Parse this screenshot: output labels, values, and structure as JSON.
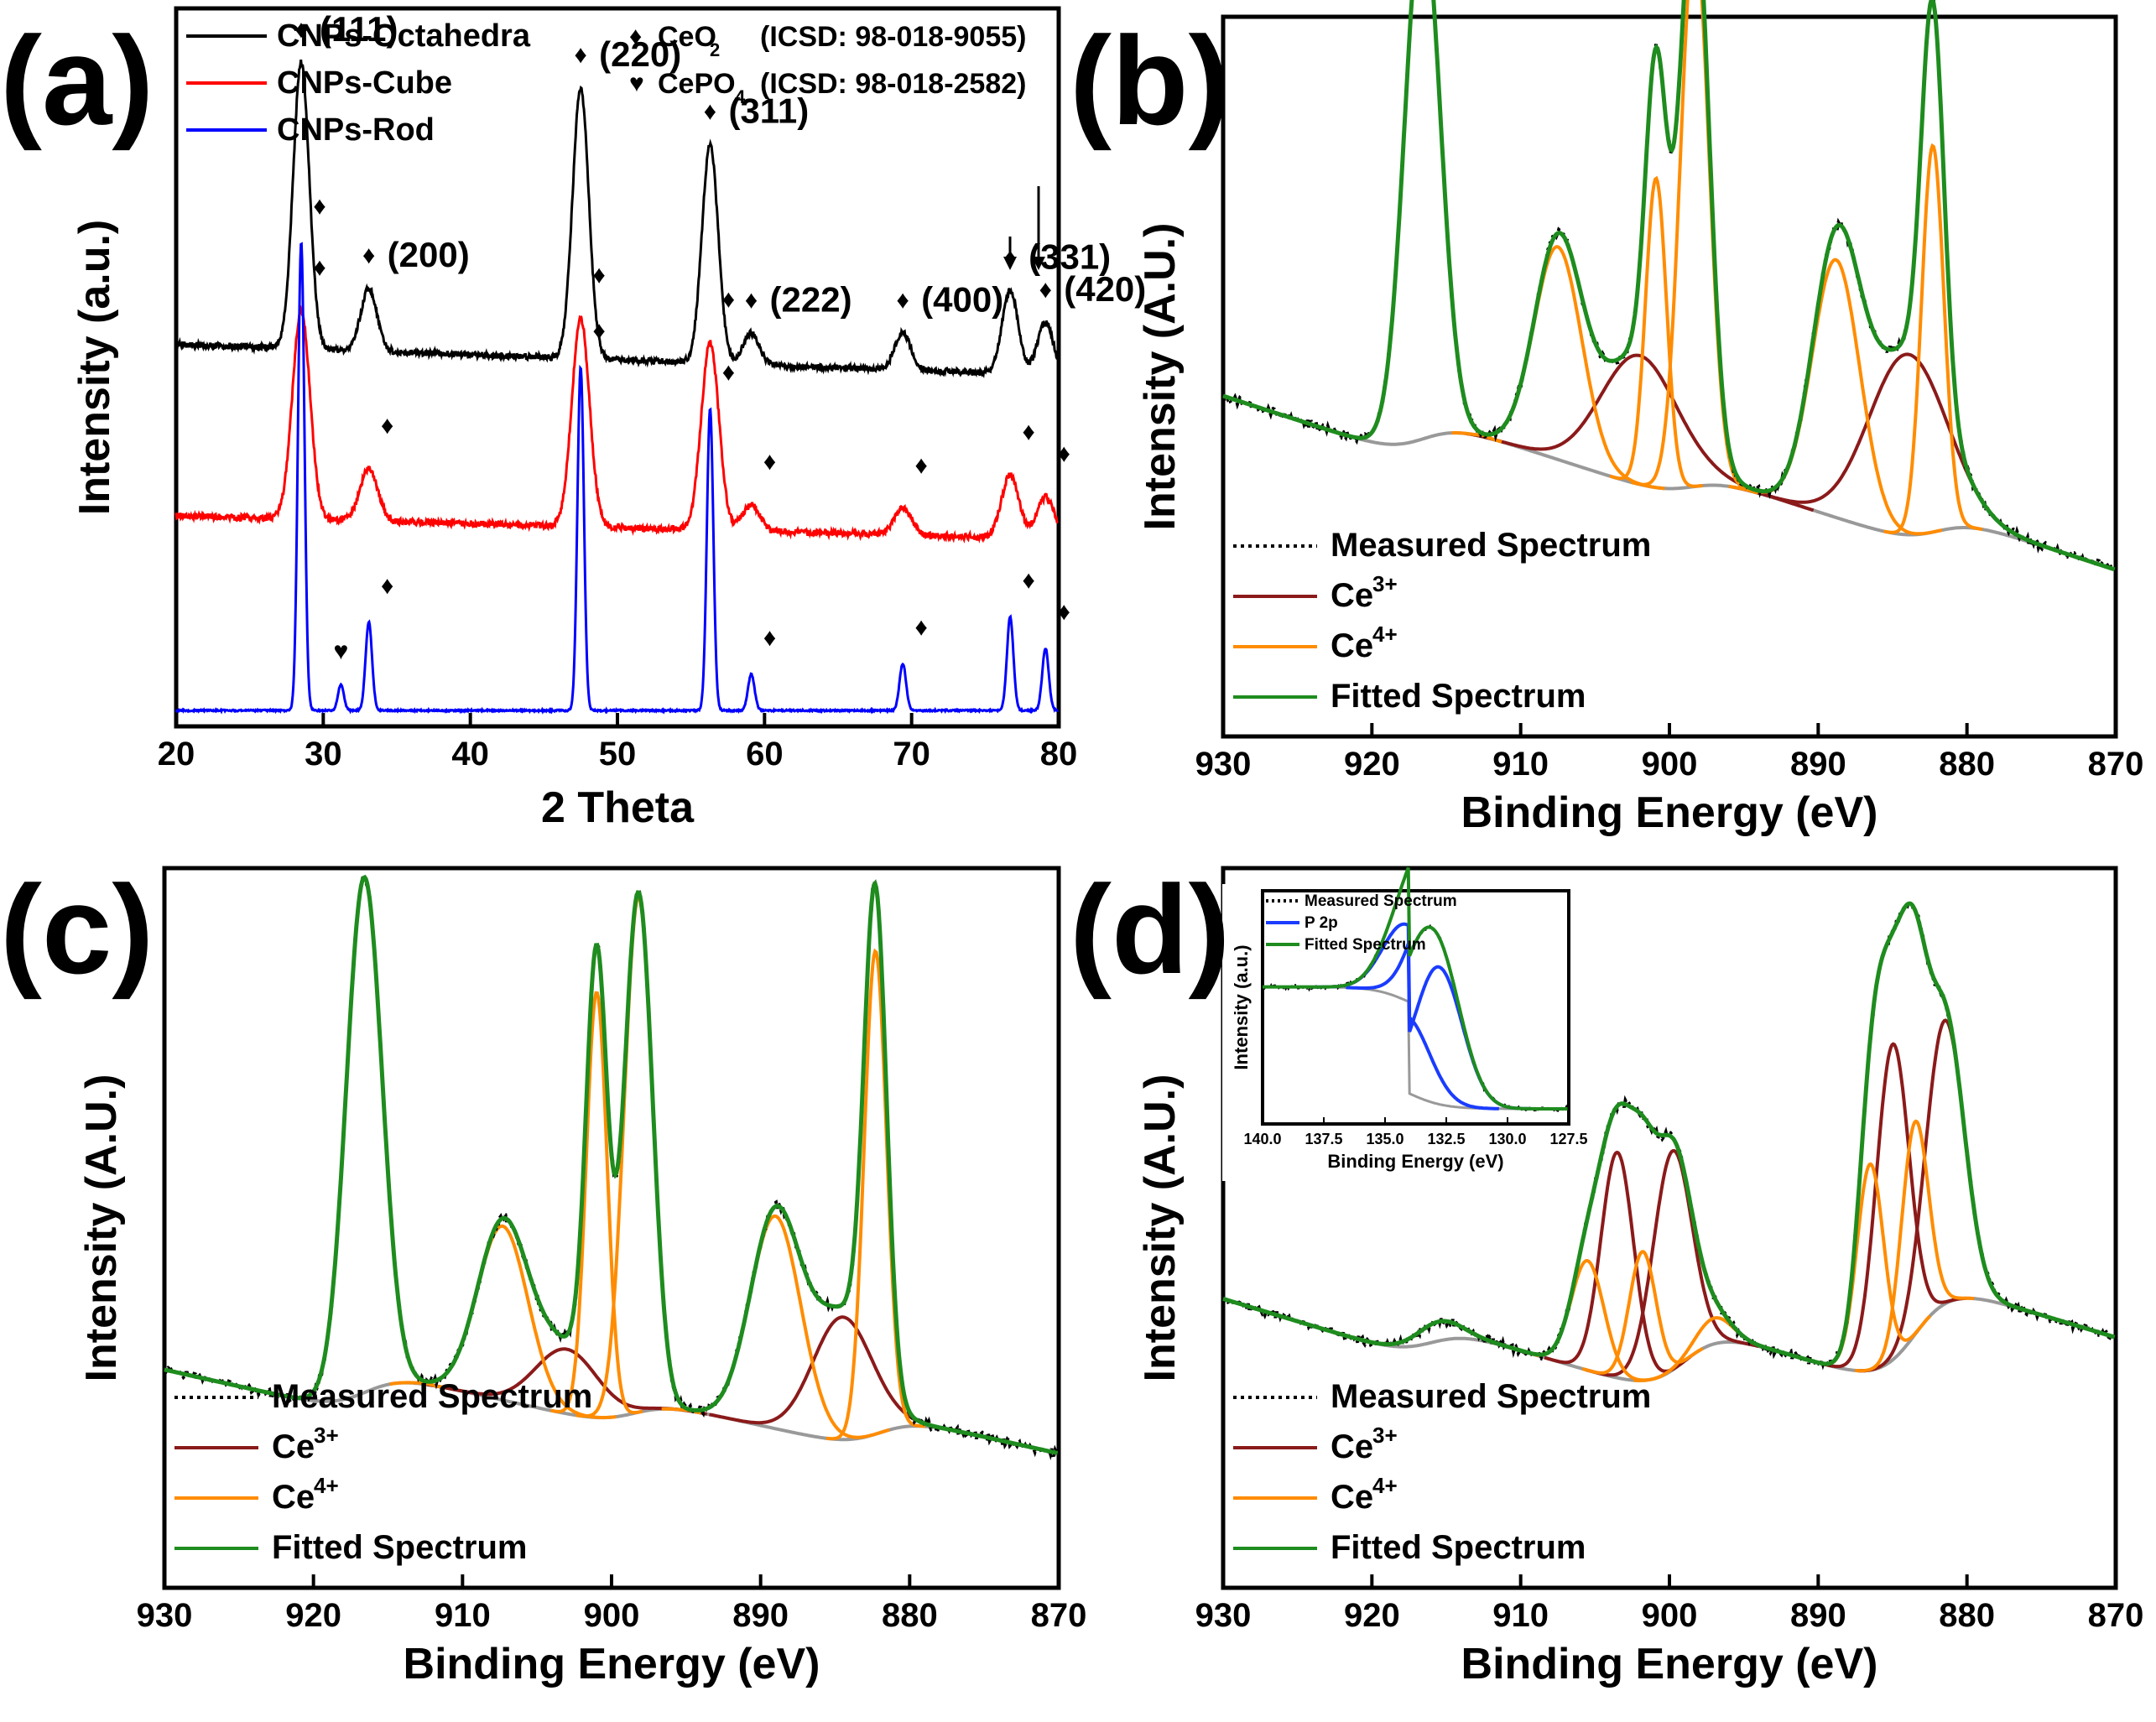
{
  "chart_data": [
    {
      "panel": "(a)",
      "type": "line",
      "xlabel": "2 Theta",
      "ylabel": "Intensity (a.u.)",
      "xlim": [
        20,
        80
      ],
      "xticks": [
        20,
        30,
        40,
        50,
        60,
        70,
        80
      ],
      "legend": [
        {
          "name": "CNPs-Octahedra",
          "color": "#000000"
        },
        {
          "name": "CNPs-Cube",
          "color": "#ff0000"
        },
        {
          "name": "CNPs-Rod",
          "color": "#0000ff"
        }
      ],
      "phases": [
        {
          "symbol": "♦",
          "formula": "CeO",
          "sub": "2",
          "ref": "(ICSD: 98-018-9055)"
        },
        {
          "symbol": "♥",
          "formula": "CePO",
          "sub": "4",
          "ref": "(ICSD: 98-018-2582)"
        }
      ],
      "peaks": [
        {
          "two_theta": 28.5,
          "label": "(111)"
        },
        {
          "two_theta": 33.1,
          "label": "(200)"
        },
        {
          "two_theta": 47.5,
          "label": "(220)"
        },
        {
          "two_theta": 56.3,
          "label": "(311)"
        },
        {
          "two_theta": 59.1,
          "label": "(222)"
        },
        {
          "two_theta": 69.4,
          "label": "(400)"
        },
        {
          "two_theta": 76.7,
          "label": "(331)"
        },
        {
          "two_theta": 79.1,
          "label": "(420)"
        }
      ],
      "cepo4_peak": 31.2,
      "series": [
        {
          "name": "CNPs-Octahedra",
          "offset": 0.62,
          "baseline": 0.08,
          "peak_width": 0.55,
          "noise": 0.012,
          "peak_heights": [
            0.55,
            0.12,
            0.52,
            0.42,
            0.06,
            0.07,
            0.16,
            0.1
          ]
        },
        {
          "name": "CNPs-Cube",
          "offset": 0.31,
          "baseline": 0.06,
          "peak_width": 0.6,
          "noise": 0.012,
          "peak_heights": [
            0.4,
            0.1,
            0.4,
            0.36,
            0.05,
            0.05,
            0.12,
            0.08
          ]
        },
        {
          "name": "CNPs-Rod",
          "offset": 0.0,
          "baseline": 0.0,
          "peak_width": 0.22,
          "noise": 0.003,
          "peak_heights": [
            0.9,
            0.17,
            0.66,
            0.58,
            0.07,
            0.09,
            0.18,
            0.12
          ],
          "cepo4_height": 0.05
        }
      ]
    },
    {
      "panel": "(b)",
      "type": "line",
      "xlabel": "Binding Energy (eV)",
      "ylabel": "Intensity (A.U.)",
      "xlim": [
        930,
        870
      ],
      "xticks": [
        930,
        920,
        910,
        900,
        890,
        880,
        870
      ],
      "legend": [
        {
          "name": "Measured Spectrum",
          "style": "dotted",
          "color": "#000000"
        },
        {
          "name": "Ce",
          "sup": "3+",
          "color": "#8b1a1a"
        },
        {
          "name": "Ce",
          "sup": "4+",
          "color": "#ff8c00"
        },
        {
          "name": "Fitted Spectrum",
          "color": "#1e8c1e"
        }
      ],
      "background": {
        "start": 0.5,
        "end": 0.05,
        "steps": [
          [
            916.5,
            0.07
          ],
          [
            898.5,
            0.05
          ],
          [
            882.0,
            0.06
          ]
        ]
      },
      "components": [
        {
          "type": "Ce3+",
          "center": 902.0,
          "sigma": 2.6,
          "height": 0.2
        },
        {
          "type": "Ce3+",
          "center": 884.0,
          "sigma": 2.6,
          "height": 0.28
        },
        {
          "type": "Ce4+",
          "center": 916.6,
          "sigma": 1.2,
          "height": 0.82
        },
        {
          "type": "Ce4+",
          "center": 907.5,
          "sigma": 1.6,
          "height": 0.33
        },
        {
          "type": "Ce4+",
          "center": 900.9,
          "sigma": 0.7,
          "height": 0.48
        },
        {
          "type": "Ce4+",
          "center": 898.3,
          "sigma": 0.95,
          "height": 0.86
        },
        {
          "type": "Ce4+",
          "center": 888.8,
          "sigma": 1.6,
          "height": 0.4
        },
        {
          "type": "Ce4+",
          "center": 882.3,
          "sigma": 0.75,
          "height": 0.6
        }
      ]
    },
    {
      "panel": "(c)",
      "type": "line",
      "xlabel": "Binding Energy (eV)",
      "ylabel": "Intensity (A.U.)",
      "xlim": [
        930,
        870
      ],
      "xticks": [
        930,
        920,
        910,
        900,
        890,
        880,
        870
      ],
      "legend": [
        {
          "name": "Measured Spectrum",
          "style": "dotted",
          "color": "#000000"
        },
        {
          "name": "Ce",
          "sup": "3+",
          "color": "#8b1a1a"
        },
        {
          "name": "Ce",
          "sup": "4+",
          "color": "#ff8c00"
        },
        {
          "name": "Fitted Spectrum",
          "color": "#1e8c1e"
        }
      ],
      "background": {
        "start": 0.31,
        "end": 0.0,
        "steps": [
          [
            916.5,
            0.07
          ],
          [
            898.5,
            0.05
          ],
          [
            882.0,
            0.06
          ]
        ]
      },
      "components": [
        {
          "type": "Ce3+",
          "center": 903.0,
          "sigma": 2.1,
          "height": 0.1
        },
        {
          "type": "Ce3+",
          "center": 884.5,
          "sigma": 2.0,
          "height": 0.19
        },
        {
          "type": "Ce4+",
          "center": 916.6,
          "sigma": 1.2,
          "height": 0.8
        },
        {
          "type": "Ce4+",
          "center": 907.3,
          "sigma": 1.7,
          "height": 0.27
        },
        {
          "type": "Ce4+",
          "center": 901.0,
          "sigma": 0.7,
          "height": 0.66
        },
        {
          "type": "Ce4+",
          "center": 898.2,
          "sigma": 0.95,
          "height": 0.8
        },
        {
          "type": "Ce4+",
          "center": 889.0,
          "sigma": 1.7,
          "height": 0.33
        },
        {
          "type": "Ce4+",
          "center": 882.3,
          "sigma": 0.75,
          "height": 0.75
        }
      ]
    },
    {
      "panel": "(d)",
      "type": "line",
      "xlabel": "Binding Energy (eV)",
      "ylabel": "Intensity (A.U.)",
      "xlim": [
        930,
        870
      ],
      "xticks": [
        930,
        920,
        910,
        900,
        890,
        880,
        870
      ],
      "legend": [
        {
          "name": "Measured Spectrum",
          "style": "dotted",
          "color": "#000000"
        },
        {
          "name": "Ce",
          "sup": "3+",
          "color": "#8b1a1a"
        },
        {
          "name": "Ce",
          "sup": "4+",
          "color": "#ff8c00"
        },
        {
          "name": "Fitted Spectrum",
          "color": "#1e8c1e"
        }
      ],
      "background": {
        "start": 0.42,
        "end": 0.0,
        "steps": [
          [
            916.0,
            0.06
          ],
          [
            899.0,
            0.12
          ],
          [
            883.5,
            0.18
          ]
        ]
      },
      "components": [
        {
          "type": "Ce3+",
          "center": 903.5,
          "sigma": 1.1,
          "height": 0.35
        },
        {
          "type": "Ce3+",
          "center": 899.8,
          "sigma": 1.3,
          "height": 0.34
        },
        {
          "type": "Ce3+",
          "center": 885.0,
          "sigma": 1.1,
          "height": 0.49
        },
        {
          "type": "Ce3+",
          "center": 881.5,
          "sigma": 1.3,
          "height": 0.44
        },
        {
          "type": "Ce4+",
          "center": 915.5,
          "sigma": 1.5,
          "height": 0.03
        },
        {
          "type": "Ce4+",
          "center": 905.5,
          "sigma": 1.1,
          "height": 0.17
        },
        {
          "type": "Ce4+",
          "center": 901.8,
          "sigma": 0.9,
          "height": 0.2
        },
        {
          "type": "Ce4+",
          "center": 897.0,
          "sigma": 1.2,
          "height": 0.04
        },
        {
          "type": "Ce4+",
          "center": 886.5,
          "sigma": 0.9,
          "height": 0.32
        },
        {
          "type": "Ce4+",
          "center": 883.5,
          "sigma": 0.9,
          "height": 0.33
        }
      ],
      "inset": {
        "xlabel": "Binding Energy (eV)",
        "ylabel": "Intensity (a.u.)",
        "xlim": [
          140,
          127.5
        ],
        "xticks": [
          "140.0",
          "137.5",
          "135.0",
          "132.5",
          "130.0",
          "127.5"
        ],
        "legend": [
          {
            "name": "Measured Spectrum",
            "style": "dotted",
            "color": "#000000"
          },
          {
            "name": "P 2p",
            "color": "#1a3cff"
          },
          {
            "name": "Fitted Spectrum",
            "color": "#1e8c1e"
          }
        ],
        "background": {
          "start": 0.3,
          "end": 0.2,
          "center": 134.0
        },
        "components": [
          {
            "center": 132.8,
            "sigma": 0.95,
            "height": 0.45
          },
          {
            "center": 134.1,
            "sigma": 0.95,
            "height": 0.25
          }
        ]
      }
    }
  ]
}
